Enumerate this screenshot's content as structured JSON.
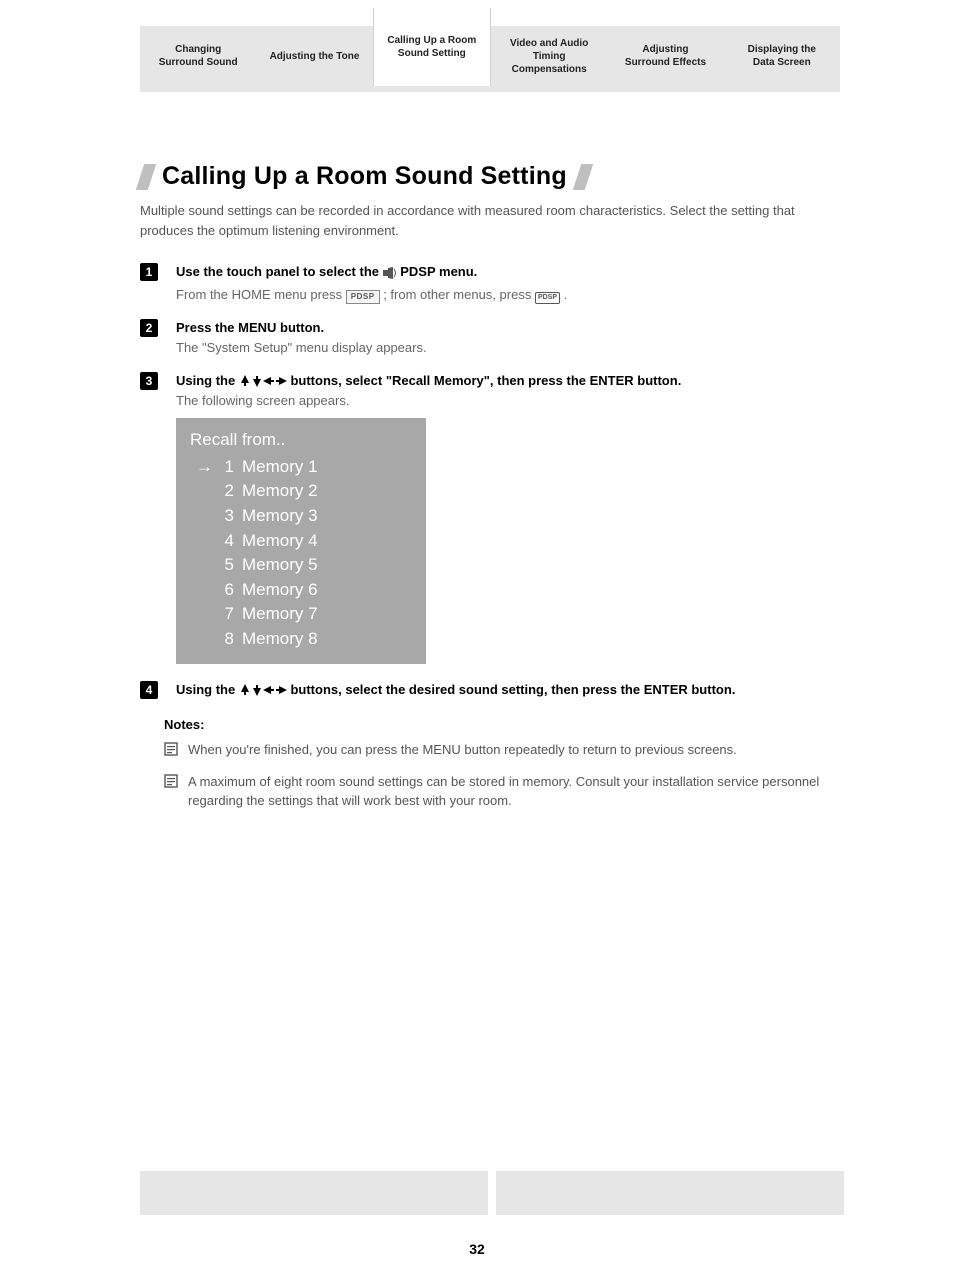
{
  "tabs": [
    {
      "label": "Changing\nSurround Sound",
      "active": false
    },
    {
      "label": "Adjusting the Tone",
      "active": false
    },
    {
      "label": "Calling Up a Room\nSound Setting",
      "active": true
    },
    {
      "label": "Video and Audio\nTiming\nCompensations",
      "active": false
    },
    {
      "label": "Adjusting\nSurround Effects",
      "active": false
    },
    {
      "label": "Displaying the\nData Screen",
      "active": false
    }
  ],
  "title": "Calling Up a Room Sound Setting",
  "intro": "Multiple sound settings can be recorded in accordance with measured room characteristics. Select the setting that produces the optimum listening environment.",
  "steps": {
    "s1": {
      "num": "1",
      "title_a": "Use the touch panel to select the ",
      "title_b": " PDSP menu.",
      "sub_a": "From the HOME menu press ",
      "sub_b": "; from other menus, press ",
      "sub_c": ".",
      "badge_home": "PDSP",
      "badge_small": "PDSP"
    },
    "s2": {
      "num": "2",
      "title": "Press the MENU button.",
      "sub": "The \"System Setup\" menu display appears."
    },
    "s3": {
      "num": "3",
      "title_a": "Using the ",
      "title_b": " buttons, select \"Recall Memory\", then press the ENTER button.",
      "sub": "The following screen appears."
    },
    "s4": {
      "num": "4",
      "title_a": "Using the ",
      "title_b": " buttons, select the desired sound setting, then press the ENTER button."
    }
  },
  "recall": {
    "title": "Recall from..",
    "items": [
      {
        "arrow": "→",
        "num": "1",
        "label": "Memory 1"
      },
      {
        "arrow": "",
        "num": "2",
        "label": "Memory 2"
      },
      {
        "arrow": "",
        "num": "3",
        "label": "Memory 3"
      },
      {
        "arrow": "",
        "num": "4",
        "label": "Memory 4"
      },
      {
        "arrow": "",
        "num": "5",
        "label": "Memory 5"
      },
      {
        "arrow": "",
        "num": "6",
        "label": "Memory 6"
      },
      {
        "arrow": "",
        "num": "7",
        "label": "Memory 7"
      },
      {
        "arrow": "",
        "num": "8",
        "label": "Memory 8"
      }
    ]
  },
  "notes": {
    "title": "Notes:",
    "n1": "When you're finished, you can press the MENU button repeatedly to return to previous screens.",
    "n2": "A maximum of eight room sound settings can be stored in memory. Consult your installation service personnel regarding the settings that will work best with your room."
  },
  "page_number": "32",
  "colors": {
    "tab_bg": "#e6e6e6",
    "panel_bg": "#a8a8a8",
    "text_muted": "#555555",
    "slash": "#bfbfbf"
  }
}
